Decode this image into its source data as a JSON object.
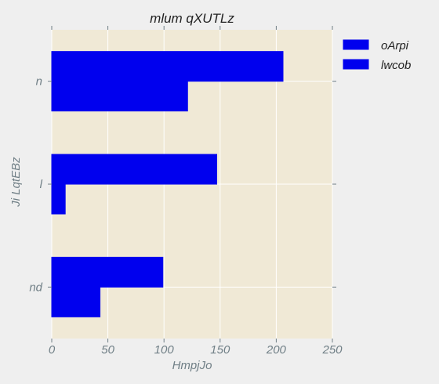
{
  "chart_data": {
    "type": "bar",
    "orientation": "horizontal",
    "title": "mlum  qXUTLz",
    "xlabel": "HmpjJo",
    "ylabel": "Ji LqtEBz",
    "categories": [
      "n",
      "l",
      "nd"
    ],
    "series": [
      {
        "name": "oArpi",
        "values": [
          206,
          147,
          99
        ],
        "color": "#0000ee"
      },
      {
        "name": "lwcob",
        "values": [
          121,
          12,
          43
        ],
        "color": "#0000ee"
      }
    ],
    "xlim": [
      0,
      250
    ],
    "xticks": [
      0,
      50,
      100,
      150,
      200,
      250
    ],
    "grid": true,
    "legend": "top-right",
    "colors": {
      "plot_background": "#f0e9d6",
      "figure_background": "#efefef",
      "grid": "#ffffff",
      "bar_edge": "#0000ee"
    }
  }
}
